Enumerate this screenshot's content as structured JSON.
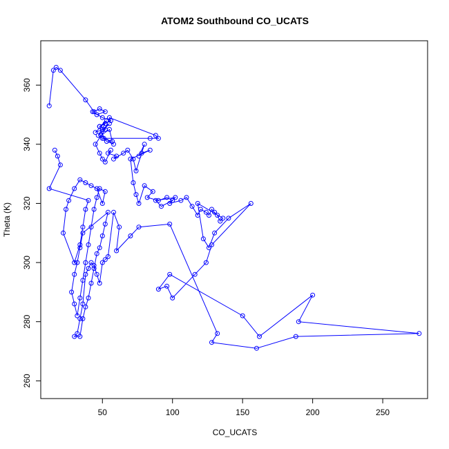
{
  "chart_data": {
    "type": "line",
    "title": "ATOM2 Southbound CO_UCATS",
    "xlabel": "CO_UCATS",
    "ylabel": "Theta (K)",
    "xlim": [
      6,
      282
    ],
    "ylim": [
      254,
      375
    ],
    "x_ticks": [
      50,
      100,
      150,
      200,
      250
    ],
    "y_ticks": [
      260,
      280,
      300,
      320,
      340,
      360
    ],
    "grid": false,
    "legend": "none",
    "series_color": "#0000ff",
    "marker": "open-circle",
    "x": [
      12,
      15,
      17,
      20,
      38,
      44,
      48,
      52,
      46,
      43,
      50,
      56,
      48,
      53,
      45,
      50,
      55,
      47,
      52,
      48,
      51,
      53,
      58,
      49,
      55,
      57,
      50,
      84,
      90,
      88,
      55,
      52,
      45,
      48,
      50,
      52,
      56,
      54,
      60,
      58,
      65,
      68,
      72,
      74,
      80,
      76,
      78,
      84,
      70,
      72,
      74,
      76,
      80,
      86,
      82,
      90,
      96,
      100,
      92,
      88,
      102,
      98,
      106,
      110,
      114,
      118,
      120,
      124,
      126,
      128,
      130,
      132,
      134,
      136,
      118,
      122,
      126,
      130,
      140,
      156,
      128,
      124,
      116,
      100,
      96,
      90,
      98,
      150,
      162,
      200,
      190,
      276,
      188,
      160,
      128,
      132,
      98,
      76,
      70,
      60,
      62,
      58,
      54,
      52,
      50,
      48,
      46,
      44,
      42,
      40,
      38,
      36,
      34,
      32,
      30,
      34,
      36,
      38,
      40,
      42,
      44,
      46,
      48,
      50,
      52,
      54,
      36,
      34,
      32,
      30,
      28,
      30,
      32,
      34,
      36,
      38,
      40,
      42,
      44,
      46,
      48,
      52,
      50,
      46,
      42,
      38,
      34,
      30,
      26,
      24,
      22,
      30,
      34,
      36,
      38,
      40,
      12,
      20,
      18,
      16
    ],
    "y": [
      353,
      365,
      366,
      365,
      355,
      351,
      352,
      351,
      350,
      351,
      349,
      348,
      346,
      348,
      344,
      345,
      347,
      343,
      347,
      346,
      342,
      341,
      340,
      343,
      345,
      341,
      342,
      342,
      342,
      343,
      349,
      345,
      340,
      337,
      335,
      334,
      338,
      337,
      336,
      335,
      337,
      338,
      335,
      331,
      340,
      336,
      337,
      338,
      335,
      327,
      323,
      320,
      326,
      324,
      322,
      321,
      322,
      321,
      319,
      321,
      322,
      320,
      321,
      322,
      319,
      316,
      318,
      317,
      316,
      318,
      317,
      316,
      314,
      315,
      320,
      308,
      305,
      310,
      315,
      320,
      306,
      300,
      296,
      288,
      292,
      291,
      296,
      282,
      275,
      289,
      280,
      276,
      275,
      271,
      273,
      276,
      313,
      312,
      309,
      304,
      312,
      317,
      302,
      301,
      300,
      293,
      296,
      299,
      300,
      298,
      296,
      286,
      281,
      276,
      275,
      275,
      281,
      285,
      288,
      293,
      298,
      303,
      305,
      309,
      313,
      317,
      310,
      305,
      300,
      296,
      290,
      286,
      282,
      288,
      294,
      300,
      306,
      312,
      318,
      322,
      325,
      324,
      320,
      325,
      326,
      327,
      328,
      325,
      321,
      318,
      310,
      300,
      306,
      312,
      318,
      321,
      325,
      333,
      336,
      338
    ]
  }
}
